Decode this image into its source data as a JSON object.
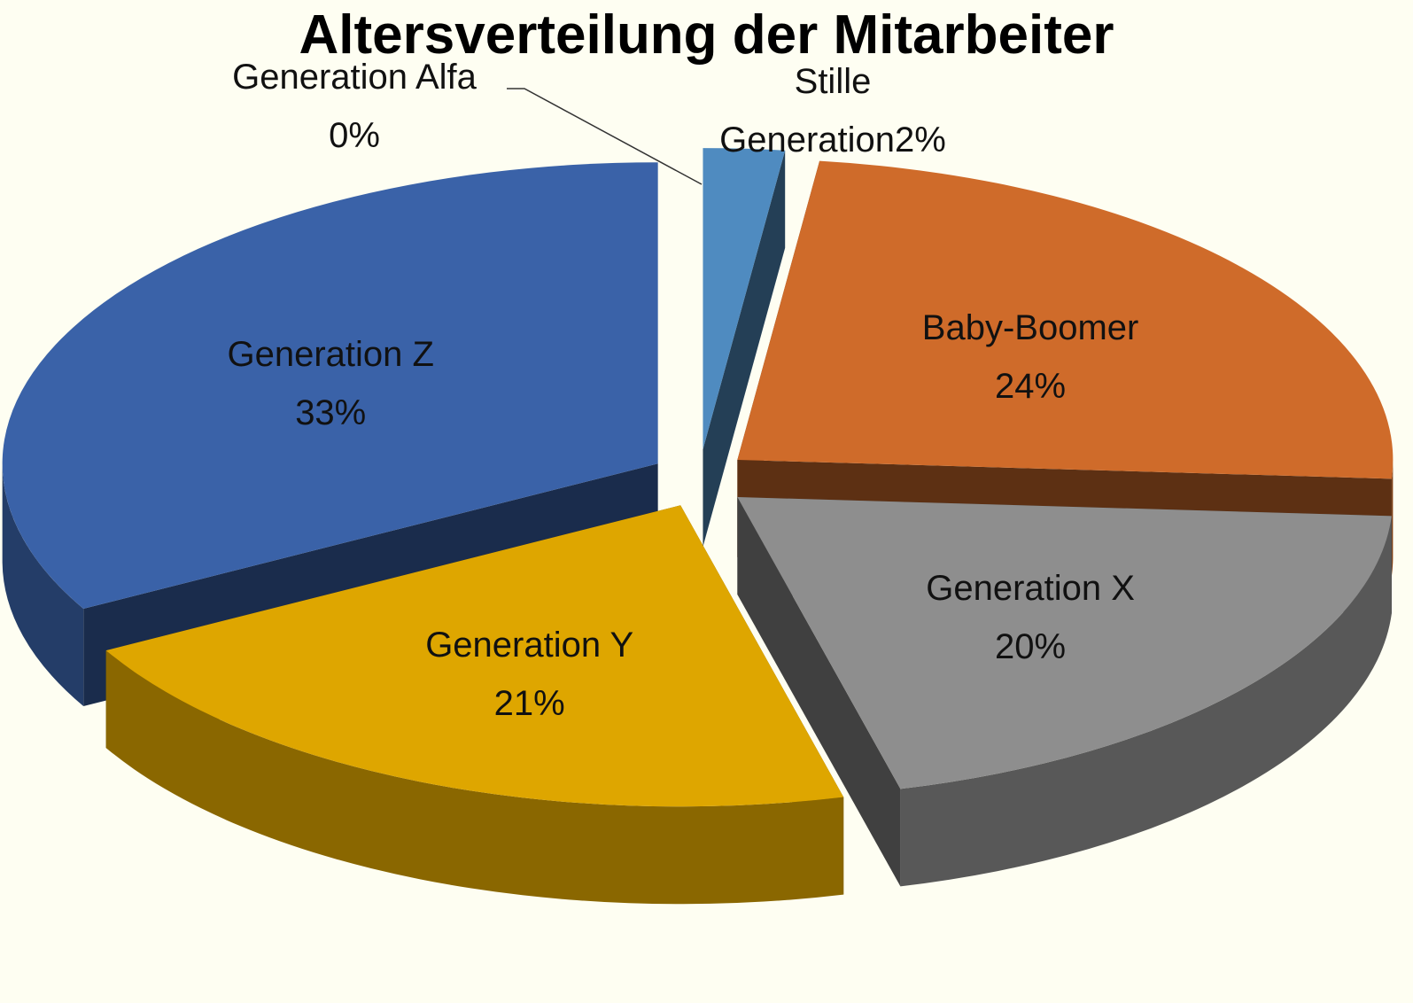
{
  "chart_data": {
    "type": "pie3d",
    "title": "Altersverteilung der Mitarbeiter",
    "categories": [
      "Generation Alfa",
      "Stille Generation",
      "Baby-Boomer",
      "Generation X",
      "Generation Y",
      "Generation Z"
    ],
    "values": [
      0,
      2,
      24,
      20,
      21,
      33
    ],
    "value_labels": [
      "0%",
      "2%",
      "24%",
      "20%",
      "21%",
      "33%"
    ],
    "colors": [
      "#4f81bd",
      "#4f8bc0",
      "#cf6b2a",
      "#8e8e8e",
      "#dea600",
      "#3a62a8"
    ]
  }
}
